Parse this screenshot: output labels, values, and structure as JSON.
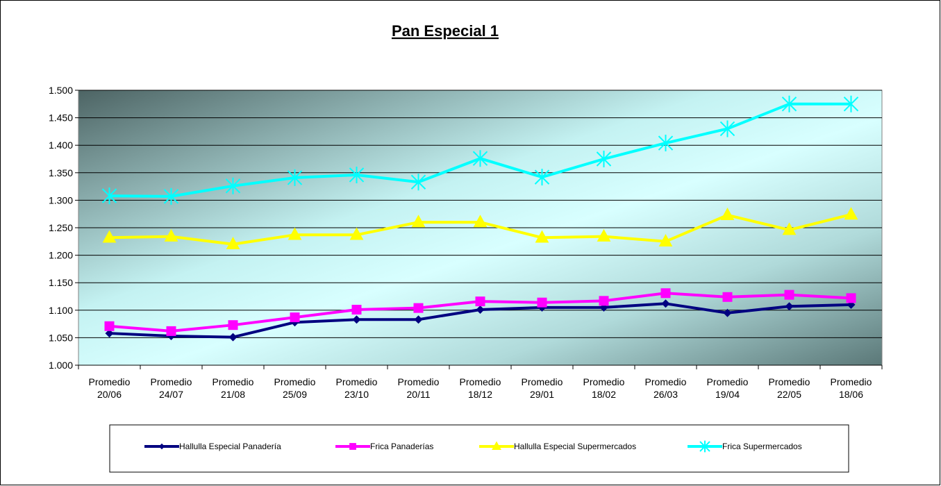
{
  "chart_data": {
    "type": "line",
    "title": "Pan Especial 1",
    "categories": [
      "Promedio 20/06",
      "Promedio 24/07",
      "Promedio 21/08",
      "Promedio 25/09",
      "Promedio 23/10",
      "Promedio 20/11",
      "Promedio 18/12",
      "Promedio 29/01",
      "Promedio 18/02",
      "Promedio 26/03",
      "Promedio 19/04",
      "Promedio 22/05",
      "Promedio 18/06"
    ],
    "series": [
      {
        "name": "Hallulla Especial Panadería",
        "color": "#000080",
        "marker": "diamond",
        "values": [
          1058,
          1053,
          1051,
          1078,
          1083,
          1083,
          1101,
          1105,
          1105,
          1112,
          1095,
          1107,
          1110
        ]
      },
      {
        "name": "Frica Panaderías",
        "color": "#ff00ff",
        "marker": "square",
        "values": [
          1071,
          1062,
          1073,
          1087,
          1101,
          1104,
          1116,
          1114,
          1117,
          1131,
          1124,
          1128,
          1122
        ]
      },
      {
        "name": "Hallulla Especial Supermercados",
        "color": "#ffff00",
        "marker": "triangle",
        "values": [
          1232,
          1234,
          1220,
          1237,
          1237,
          1260,
          1260,
          1232,
          1234,
          1225,
          1273,
          1246,
          1274
        ]
      },
      {
        "name": "Frica Supermercados",
        "color": "#00ffff",
        "marker": "cross",
        "values": [
          1308,
          1307,
          1326,
          1341,
          1346,
          1333,
          1376,
          1342,
          1375,
          1404,
          1430,
          1475,
          1475
        ]
      }
    ],
    "ylim": [
      1000,
      1500
    ],
    "yticks": [
      {
        "value": 1000,
        "label": "1.000"
      },
      {
        "value": 1050,
        "label": "1.050"
      },
      {
        "value": 1100,
        "label": "1.100"
      },
      {
        "value": 1150,
        "label": "1.150"
      },
      {
        "value": 1200,
        "label": "1.200"
      },
      {
        "value": 1250,
        "label": "1.250"
      },
      {
        "value": 1300,
        "label": "1.300"
      },
      {
        "value": 1350,
        "label": "1.350"
      },
      {
        "value": 1400,
        "label": "1.400"
      },
      {
        "value": 1450,
        "label": "1.450"
      },
      {
        "value": 1500,
        "label": "1.500"
      }
    ],
    "grid": true,
    "legend": "bottom"
  }
}
